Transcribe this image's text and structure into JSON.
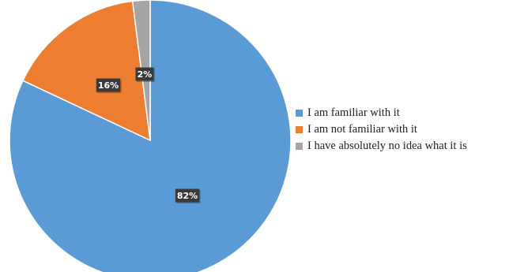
{
  "chart_data": {
    "type": "pie",
    "categories": [
      "I am familiar with it",
      "I am not familiar with it",
      "I have absolutely no idea what it is"
    ],
    "values": [
      82,
      16,
      2
    ],
    "data_labels": [
      "82%",
      "16%",
      "2%"
    ],
    "colors": [
      "#5b9bd5",
      "#ed7d31",
      "#a5a5a5"
    ],
    "start_angle": "12 o'clock, clockwise",
    "legend_position": "right",
    "title": ""
  }
}
